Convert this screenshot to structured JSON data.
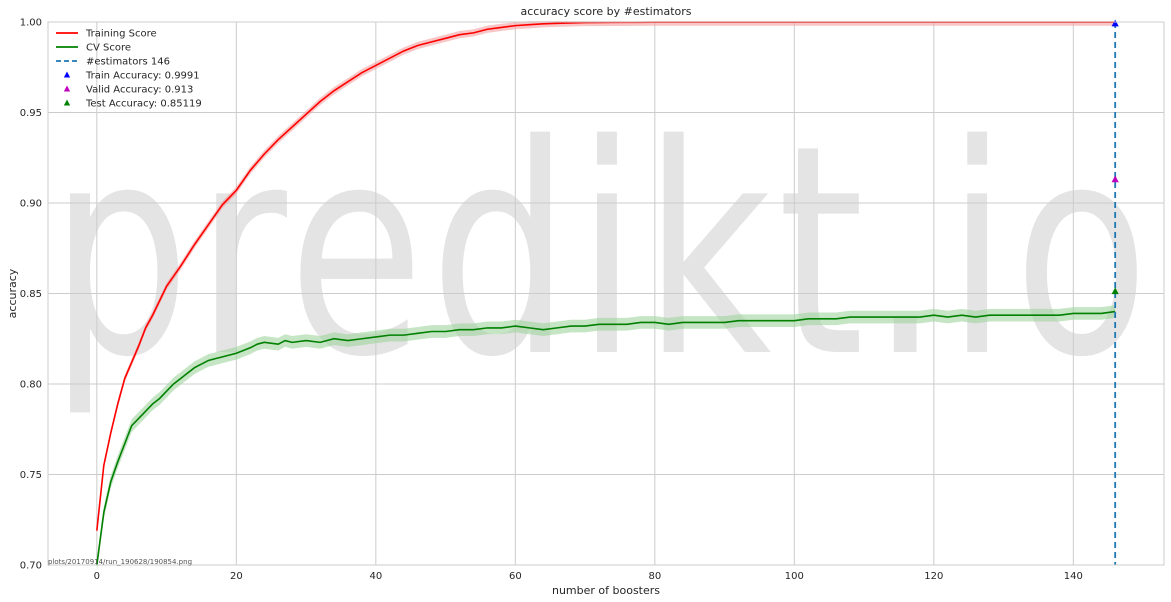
{
  "chart_data": {
    "type": "line",
    "title": "accuracy score by #estimators",
    "xlabel": "number of boosters",
    "ylabel": "accuracy",
    "xlim": [
      -7,
      153
    ],
    "ylim": [
      0.7,
      1.0
    ],
    "xticks": [
      0,
      20,
      40,
      60,
      80,
      100,
      120,
      140
    ],
    "yticks": [
      0.7,
      0.75,
      0.8,
      0.85,
      0.9,
      0.95,
      1.0
    ],
    "xtick_labels": [
      "0",
      "20",
      "40",
      "60",
      "80",
      "100",
      "120",
      "140"
    ],
    "ytick_labels": [
      "0.70",
      "0.75",
      "0.80",
      "0.85",
      "0.90",
      "0.95",
      "1.00"
    ],
    "grid": true,
    "legend_position": "top-left",
    "series": [
      {
        "name": "Training Score",
        "color": "#ff0000",
        "band_color": "#f4a0a0",
        "x": [
          0,
          1,
          2,
          3,
          4,
          5,
          6,
          7,
          8,
          9,
          10,
          12,
          14,
          16,
          18,
          20,
          22,
          24,
          26,
          28,
          30,
          32,
          34,
          36,
          38,
          40,
          42,
          44,
          46,
          48,
          50,
          52,
          54,
          56,
          58,
          60,
          62,
          64,
          66,
          68,
          70,
          75,
          80,
          85,
          90,
          100,
          110,
          120,
          130,
          140,
          146
        ],
        "y": [
          0.719,
          0.755,
          0.773,
          0.789,
          0.803,
          0.812,
          0.821,
          0.831,
          0.838,
          0.846,
          0.854,
          0.865,
          0.877,
          0.888,
          0.899,
          0.907,
          0.918,
          0.927,
          0.935,
          0.942,
          0.949,
          0.956,
          0.962,
          0.967,
          0.972,
          0.976,
          0.98,
          0.984,
          0.987,
          0.989,
          0.991,
          0.993,
          0.994,
          0.996,
          0.997,
          0.998,
          0.9985,
          0.999,
          0.9993,
          0.9995,
          0.9997,
          0.9998,
          0.9999,
          0.9999,
          0.9999,
          0.9999,
          0.9999,
          0.9999,
          0.9999,
          0.9999,
          0.9999
        ],
        "band": 0.002
      },
      {
        "name": "CV Score",
        "color": "#008000",
        "band_color": "#9fd39f",
        "x": [
          0,
          1,
          2,
          3,
          4,
          5,
          6,
          7,
          8,
          9,
          10,
          11,
          12,
          13,
          14,
          15,
          16,
          17,
          18,
          20,
          22,
          23,
          24,
          26,
          27,
          28,
          30,
          32,
          34,
          36,
          38,
          40,
          42,
          44,
          46,
          48,
          50,
          52,
          54,
          56,
          58,
          60,
          62,
          64,
          66,
          68,
          70,
          72,
          74,
          76,
          78,
          80,
          82,
          84,
          86,
          88,
          90,
          92,
          94,
          96,
          98,
          100,
          102,
          104,
          106,
          108,
          110,
          112,
          114,
          116,
          118,
          120,
          122,
          124,
          126,
          128,
          130,
          132,
          134,
          136,
          138,
          140,
          142,
          144,
          146
        ],
        "y": [
          0.7,
          0.729,
          0.746,
          0.757,
          0.767,
          0.777,
          0.781,
          0.785,
          0.789,
          0.792,
          0.796,
          0.8,
          0.803,
          0.806,
          0.809,
          0.811,
          0.813,
          0.814,
          0.815,
          0.817,
          0.82,
          0.822,
          0.823,
          0.822,
          0.824,
          0.823,
          0.824,
          0.823,
          0.825,
          0.824,
          0.825,
          0.826,
          0.827,
          0.827,
          0.828,
          0.829,
          0.829,
          0.83,
          0.83,
          0.831,
          0.831,
          0.832,
          0.831,
          0.83,
          0.831,
          0.832,
          0.832,
          0.833,
          0.833,
          0.833,
          0.834,
          0.834,
          0.833,
          0.834,
          0.834,
          0.834,
          0.834,
          0.835,
          0.835,
          0.835,
          0.835,
          0.835,
          0.836,
          0.836,
          0.836,
          0.837,
          0.837,
          0.837,
          0.837,
          0.837,
          0.837,
          0.838,
          0.837,
          0.838,
          0.837,
          0.838,
          0.838,
          0.838,
          0.838,
          0.838,
          0.838,
          0.839,
          0.839,
          0.839,
          0.84
        ],
        "band": 0.0035
      }
    ],
    "vline": {
      "name": "#estimators 146",
      "x": 146,
      "color": "#1f77b4"
    },
    "markers": [
      {
        "name": "Train Accuracy: 0.9991",
        "x": 146,
        "y": 0.9991,
        "color": "#0000ff"
      },
      {
        "name": "Valid Accuracy: 0.913",
        "x": 146,
        "y": 0.913,
        "color": "#bf00bf"
      },
      {
        "name": "Test Accuracy: 0.85119",
        "x": 146,
        "y": 0.85119,
        "color": "#008000"
      }
    ]
  },
  "footnote": "plots/20170914/run_190628/190854.png",
  "watermark": "predikt.io"
}
